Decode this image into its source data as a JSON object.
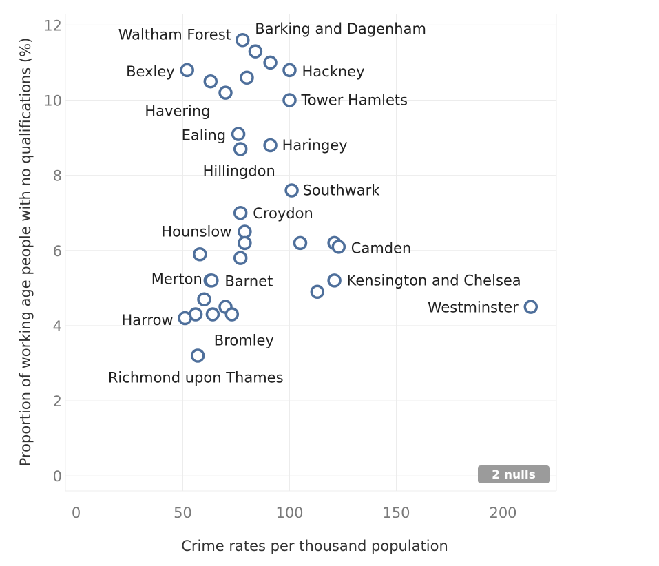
{
  "chart_data": {
    "type": "scatter",
    "xlabel": "Crime rates per thousand population",
    "ylabel": "Proportion of working age people with no qualifications (%)",
    "xlim": [
      -5,
      225
    ],
    "ylim": [
      -0.4,
      12.3
    ],
    "xticks": [
      0,
      50,
      100,
      150,
      200
    ],
    "yticks": [
      0,
      2,
      4,
      6,
      8,
      10,
      12
    ],
    "grid": true,
    "marker_color": "#4e6f9b",
    "null_badge": "2 nulls",
    "points": [
      {
        "x": 78,
        "y": 11.6,
        "label": "Barking and Dagenham"
      },
      {
        "x": 84,
        "y": 11.3,
        "label": "Waltham Forest"
      },
      {
        "x": 91,
        "y": 11.0,
        "label": ""
      },
      {
        "x": 100,
        "y": 10.8,
        "label": "Hackney"
      },
      {
        "x": 52,
        "y": 10.8,
        "label": "Bexley"
      },
      {
        "x": 63,
        "y": 10.5,
        "label": ""
      },
      {
        "x": 80,
        "y": 10.6,
        "label": ""
      },
      {
        "x": 70,
        "y": 10.2,
        "label": "Havering"
      },
      {
        "x": 100,
        "y": 10.0,
        "label": "Tower Hamlets"
      },
      {
        "x": 76,
        "y": 9.1,
        "label": "Ealing"
      },
      {
        "x": 77,
        "y": 8.7,
        "label": "Hillingdon"
      },
      {
        "x": 91,
        "y": 8.8,
        "label": "Haringey"
      },
      {
        "x": 101,
        "y": 7.6,
        "label": "Southwark"
      },
      {
        "x": 77,
        "y": 7.0,
        "label": "Croydon"
      },
      {
        "x": 79,
        "y": 6.5,
        "label": "Hounslow"
      },
      {
        "x": 79,
        "y": 6.2,
        "label": ""
      },
      {
        "x": 105,
        "y": 6.2,
        "label": ""
      },
      {
        "x": 121,
        "y": 6.2,
        "label": ""
      },
      {
        "x": 123,
        "y": 6.1,
        "label": "Camden"
      },
      {
        "x": 58,
        "y": 5.9,
        "label": ""
      },
      {
        "x": 77,
        "y": 5.8,
        "label": ""
      },
      {
        "x": 63,
        "y": 5.2,
        "label": "Merton"
      },
      {
        "x": 63.5,
        "y": 5.2,
        "label": "Barnet"
      },
      {
        "x": 121,
        "y": 5.2,
        "label": "Kensington and Chelsea"
      },
      {
        "x": 113,
        "y": 4.9,
        "label": ""
      },
      {
        "x": 60,
        "y": 4.7,
        "label": ""
      },
      {
        "x": 70,
        "y": 4.5,
        "label": ""
      },
      {
        "x": 213,
        "y": 4.5,
        "label": "Westminster"
      },
      {
        "x": 56,
        "y": 4.3,
        "label": ""
      },
      {
        "x": 64,
        "y": 4.3,
        "label": ""
      },
      {
        "x": 73,
        "y": 4.3,
        "label": "Bromley"
      },
      {
        "x": 51,
        "y": 4.2,
        "label": "Harrow"
      },
      {
        "x": 57,
        "y": 3.2,
        "label": "Richmond upon Thames"
      }
    ]
  }
}
